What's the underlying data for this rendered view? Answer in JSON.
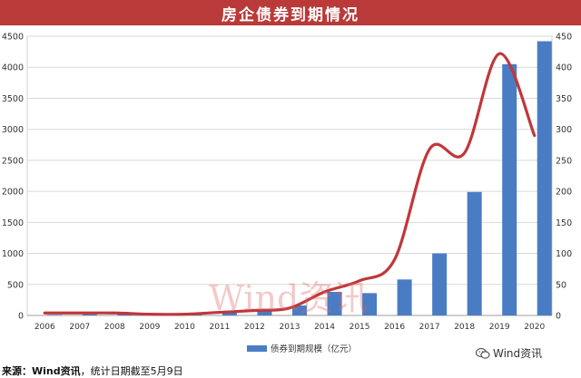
{
  "banner": {
    "title": "房企债券到期情况"
  },
  "watermark": {
    "text": "Wind资讯"
  },
  "brand": {
    "icon": "wechat-icon",
    "text": "Wind资讯"
  },
  "source": {
    "label": "来源：Wind资讯",
    "text": "，统计日期截至5月9日"
  },
  "chart_data": {
    "type": "bar",
    "title": "房企债券到期情况",
    "categories": [
      "2006",
      "2007",
      "2008",
      "2009",
      "2010",
      "2011",
      "2012",
      "2013",
      "2014",
      "2015",
      "2016",
      "2017",
      "2018",
      "2019",
      "2020"
    ],
    "series": [
      {
        "name": "债券到期规模（亿元）",
        "type": "bar",
        "axis": "left",
        "values": [
          10,
          20,
          30,
          20,
          30,
          50,
          100,
          160,
          380,
          360,
          580,
          1000,
          1990,
          4050,
          4420
        ]
      },
      {
        "type": "line",
        "axis": "right",
        "values": [
          4,
          4,
          4,
          2,
          2,
          5,
          8,
          12,
          38,
          56,
          90,
          268,
          262,
          422,
          290
        ]
      }
    ],
    "ylim_left": [
      0,
      4500
    ],
    "yticks_left": [
      0,
      500,
      1000,
      1500,
      2000,
      2500,
      3000,
      3500,
      4000,
      4500
    ],
    "ylim_right": [
      0,
      450
    ],
    "yticks_right": [
      0,
      50,
      100,
      150,
      200,
      250,
      300,
      350,
      400,
      450
    ],
    "grid": true,
    "legend_position": "bottom",
    "bar_color": "#4a7cc4",
    "line_color": "#c0373a"
  }
}
